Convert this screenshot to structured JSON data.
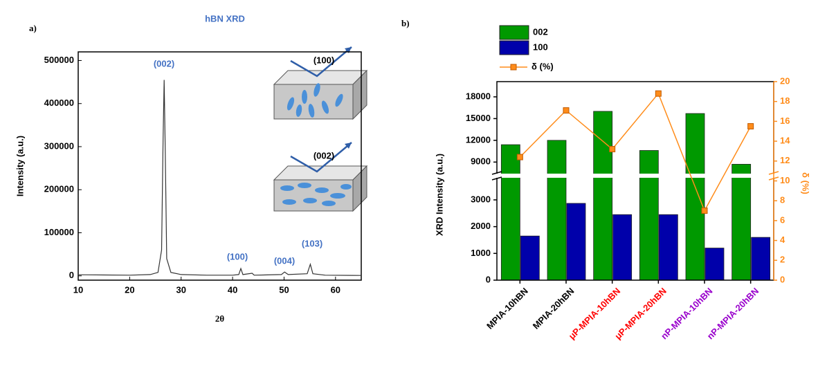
{
  "chart_data": [
    {
      "type": "line",
      "panel_label": "a)",
      "title": "hBN XRD",
      "xlabel": "2θ",
      "ylabel": "Intensity (a.u.)",
      "x": [
        10,
        15,
        20,
        24,
        25.5,
        26.2,
        26.5,
        26.7,
        26.9,
        27.2,
        28,
        30,
        35,
        40,
        41.2,
        41.6,
        42,
        43.8,
        44.2,
        49.5,
        50.1,
        50.8,
        54.5,
        55.1,
        55.6,
        58,
        65
      ],
      "series": [
        {
          "color": "#333333",
          "values": [
            2500,
            2000,
            1500,
            3000,
            8000,
            60000,
            320000,
            455000,
            300000,
            40000,
            8000,
            3000,
            1500,
            1500,
            3000,
            17000,
            3000,
            6000,
            1500,
            3000,
            9000,
            3000,
            5000,
            27000,
            5000,
            1500,
            1000
          ]
        }
      ],
      "xlim": [
        10,
        65
      ],
      "xticks": [
        10,
        20,
        30,
        40,
        50,
        60
      ],
      "ylim": [
        -10000,
        520000
      ],
      "yticks": [
        0,
        100000,
        200000,
        300000,
        400000,
        500000
      ],
      "annotations": [
        "(002)",
        "(100)",
        "(004)",
        "(103)"
      ],
      "annotation_color": "#4472c4",
      "inset_labels": [
        "(100)",
        "(002)"
      ]
    },
    {
      "type": "bar",
      "panel_label": "b)",
      "ylabel": "XRD Intensity (a.u.)",
      "y2label": "δ (%)",
      "categories": [
        "MPIA-10hBN",
        "MPIA-20hBN",
        "μP-MPIA-10hBN",
        "μP-MPIA-20hBN",
        "nP-MPIA-10hBN",
        "nP-MPIA-20hBN"
      ],
      "category_colors": [
        "#000000",
        "#000000",
        "#ff0000",
        "#ff0000",
        "#9900cc",
        "#9900cc"
      ],
      "series": [
        {
          "name": "002",
          "color": "#009900",
          "values": [
            11400,
            12000,
            16000,
            10600,
            15700,
            8700
          ]
        },
        {
          "name": "100",
          "color": "#0000aa",
          "values": [
            1650,
            2870,
            2450,
            2450,
            1200,
            1600
          ]
        },
        {
          "name": "δ (%)",
          "color": "#ff8c1a",
          "axis": "y2",
          "values": [
            12.4,
            17.1,
            13.2,
            18.8,
            7.0,
            15.5
          ]
        }
      ],
      "segments": [
        {
          "ylim": [
            0,
            3800
          ],
          "yticks": [
            0,
            1000,
            2000,
            3000
          ]
        },
        {
          "ylim": [
            7500,
            20100
          ],
          "yticks": [
            9000,
            12000,
            15000,
            18000
          ]
        }
      ],
      "y2lim": [
        0,
        20
      ],
      "y2ticks": [
        0,
        2,
        4,
        6,
        8,
        10,
        12,
        14,
        16,
        18,
        20
      ]
    }
  ]
}
